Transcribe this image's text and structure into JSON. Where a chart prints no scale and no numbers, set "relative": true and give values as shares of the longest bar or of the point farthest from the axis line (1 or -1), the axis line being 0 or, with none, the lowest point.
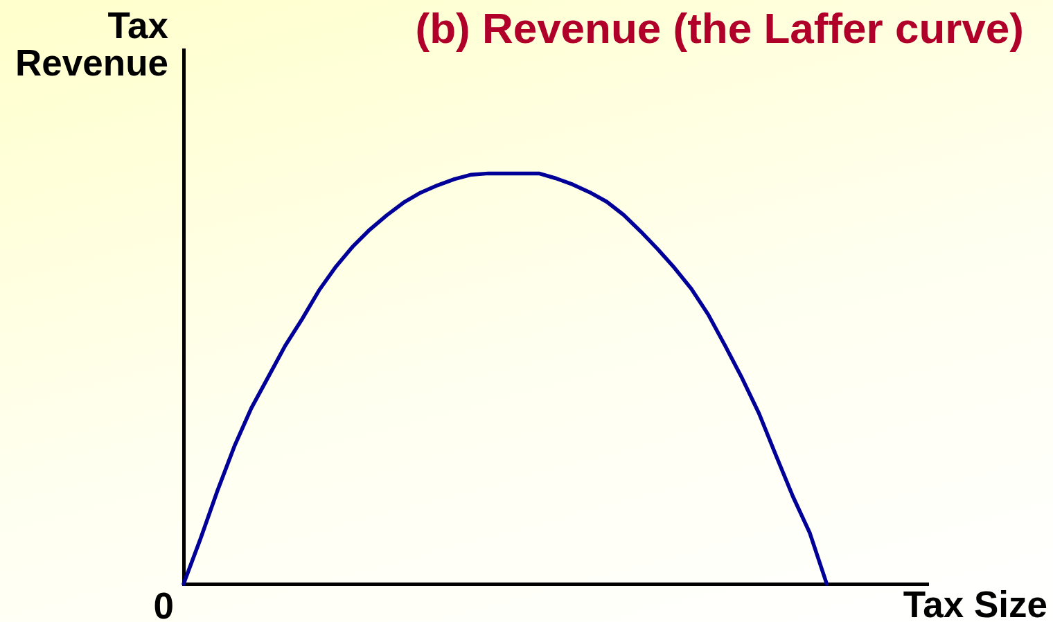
{
  "chart_data": {
    "type": "line",
    "title": "(b) Revenue (the Laffer curve)",
    "xlabel": "Tax Size",
    "ylabel": "Tax Revenue",
    "annotations": [
      "0"
    ],
    "relative": true,
    "categories": [
      null,
      null,
      null,
      null,
      null,
      null,
      null,
      null,
      null,
      null,
      null,
      null,
      null,
      null,
      null,
      null,
      null,
      null,
      null,
      null,
      null,
      null,
      null,
      null,
      null,
      null,
      null,
      null,
      null,
      null,
      null,
      null,
      null,
      null,
      null,
      null,
      null,
      null,
      null,
      null,
      null,
      null,
      null,
      null,
      null
    ],
    "color": "#000099",
    "values": [
      0,
      0.11,
      0.227,
      0.335,
      0.428,
      0.504,
      0.58,
      0.645,
      0.715,
      0.773,
      0.822,
      0.863,
      0.898,
      0.929,
      0.953,
      0.971,
      0.986,
      0.997,
      1,
      1,
      1,
      1,
      0.988,
      0.973,
      0.954,
      0.931,
      0.899,
      0.859,
      0.816,
      0.77,
      0.719,
      0.656,
      0.58,
      0.501,
      0.415,
      0.313,
      0.213,
      0.124,
      0,
      null,
      null,
      null,
      null,
      null,
      null
    ]
  }
}
